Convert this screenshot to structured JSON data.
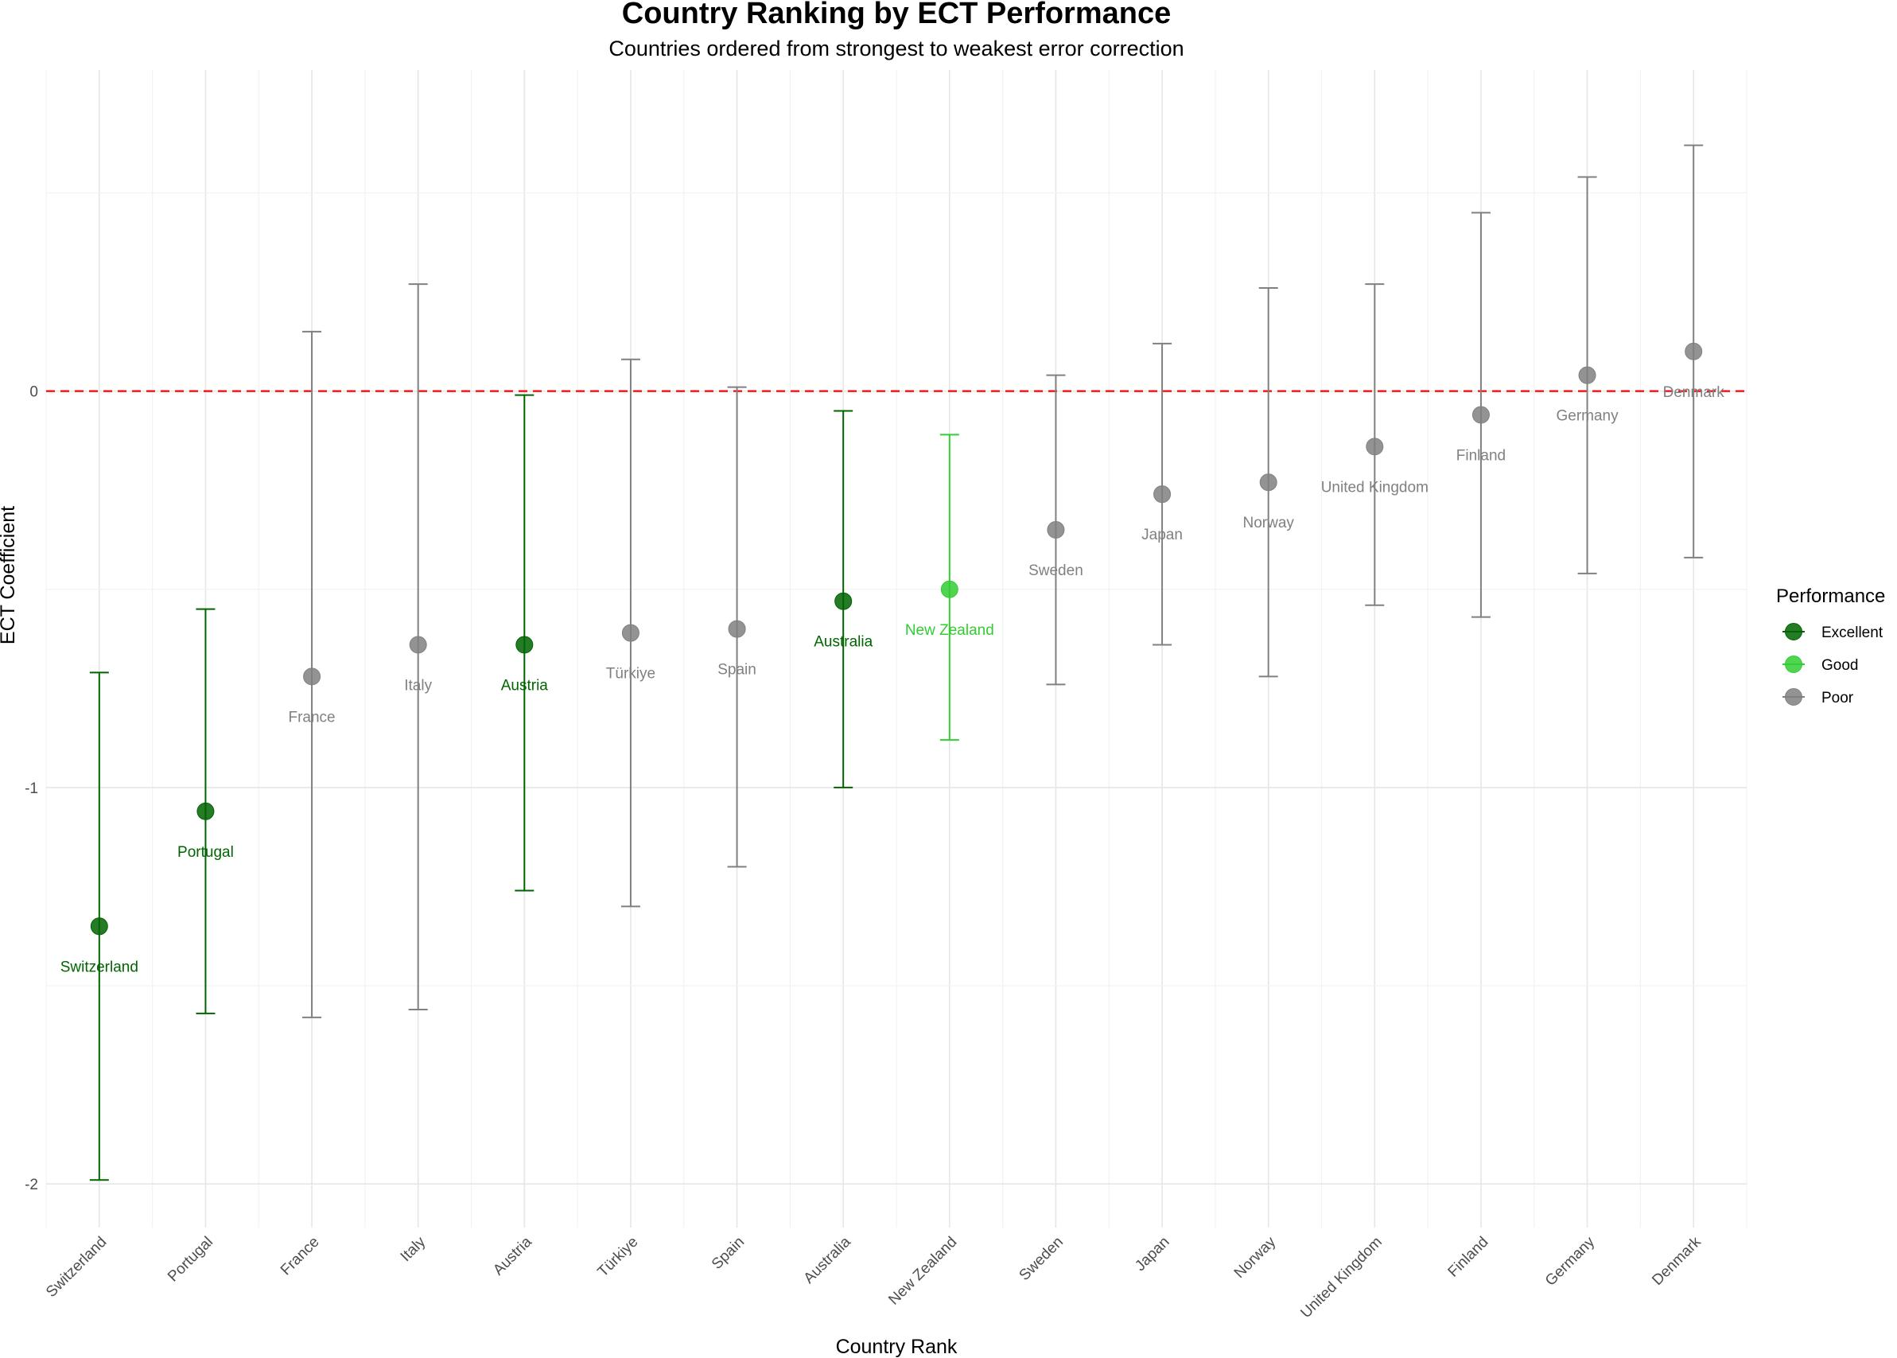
{
  "chart_data": {
    "type": "scatter",
    "subtype": "point-with-errorbars",
    "title": "Country Ranking by ECT Performance",
    "subtitle": "Countries ordered from strongest to weakest error correction",
    "xlabel": "Country Rank",
    "ylabel": "ECT Coefficient",
    "ylim": [
      -2.11,
      0.81
    ],
    "y_ticks": [
      -2,
      -1,
      0
    ],
    "y_tick_labels": [
      "-2",
      "-1",
      "0"
    ],
    "reference_line": {
      "y": 0,
      "style": "dashed",
      "color": "#ff0000"
    },
    "legend": {
      "title": "Performance",
      "position": "right",
      "entries": [
        {
          "label": "Excellent",
          "color": "#006400"
        },
        {
          "label": "Good",
          "color": "#32cd32"
        },
        {
          "label": "Poor",
          "color": "#808080"
        }
      ]
    },
    "points": [
      {
        "country": "Switzerland",
        "ect": -1.35,
        "lower": -1.99,
        "upper": -0.71,
        "performance": "Excellent"
      },
      {
        "country": "Portugal",
        "ect": -1.06,
        "lower": -1.57,
        "upper": -0.55,
        "performance": "Excellent"
      },
      {
        "country": "France",
        "ect": -0.72,
        "lower": -1.58,
        "upper": 0.15,
        "performance": "Poor"
      },
      {
        "country": "Italy",
        "ect": -0.64,
        "lower": -1.56,
        "upper": 0.27,
        "performance": "Poor"
      },
      {
        "country": "Austria",
        "ect": -0.64,
        "lower": -1.26,
        "upper": -0.01,
        "performance": "Excellent"
      },
      {
        "country": "Türkiye",
        "ect": -0.61,
        "lower": -1.3,
        "upper": 0.08,
        "performance": "Poor"
      },
      {
        "country": "Spain",
        "ect": -0.6,
        "lower": -1.2,
        "upper": 0.01,
        "performance": "Poor"
      },
      {
        "country": "Australia",
        "ect": -0.53,
        "lower": -1.0,
        "upper": -0.05,
        "performance": "Excellent"
      },
      {
        "country": "New Zealand",
        "ect": -0.5,
        "lower": -0.88,
        "upper": -0.11,
        "performance": "Good"
      },
      {
        "country": "Sweden",
        "ect": -0.35,
        "lower": -0.74,
        "upper": 0.04,
        "performance": "Poor"
      },
      {
        "country": "Japan",
        "ect": -0.26,
        "lower": -0.64,
        "upper": 0.12,
        "performance": "Poor"
      },
      {
        "country": "Norway",
        "ect": -0.23,
        "lower": -0.72,
        "upper": 0.26,
        "performance": "Poor"
      },
      {
        "country": "United Kingdom",
        "ect": -0.14,
        "lower": -0.54,
        "upper": 0.27,
        "performance": "Poor"
      },
      {
        "country": "Finland",
        "ect": -0.06,
        "lower": -0.57,
        "upper": 0.45,
        "performance": "Poor"
      },
      {
        "country": "Germany",
        "ect": 0.04,
        "lower": -0.46,
        "upper": 0.54,
        "performance": "Poor"
      },
      {
        "country": "Denmark",
        "ect": 0.1,
        "lower": -0.42,
        "upper": 0.62,
        "performance": "Poor"
      }
    ]
  }
}
